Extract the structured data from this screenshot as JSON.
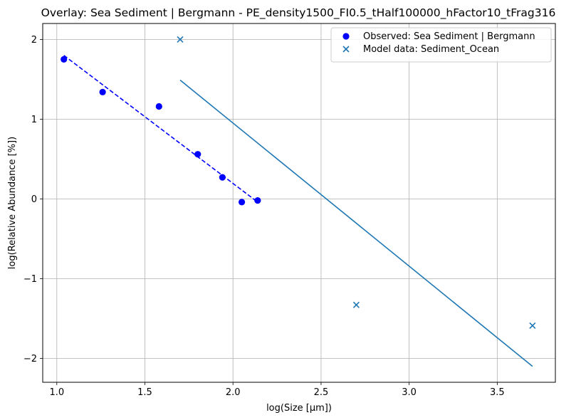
{
  "chart_data": {
    "type": "scatter",
    "title": "Overlay: Sea Sediment | Bergmann - PE_density1500_FI0.5_tHalf100000_hFactor10_tFrag316",
    "xlabel": "log(Size [μm])",
    "ylabel": "log(Relative Abundance [%])",
    "xlim": [
      0.92,
      3.83
    ],
    "ylim": [
      -2.3,
      2.2
    ],
    "xticks": [
      1.0,
      1.5,
      2.0,
      2.5,
      3.0,
      3.5
    ],
    "xtick_labels": [
      "1.0",
      "1.5",
      "2.0",
      "2.5",
      "3.0",
      "3.5"
    ],
    "yticks": [
      -2,
      -1,
      0,
      1,
      2
    ],
    "ytick_labels": [
      "−2",
      "−1",
      "0",
      "1",
      "2"
    ],
    "grid": true,
    "legend_position": "top-right",
    "series": [
      {
        "name": "Observed: Sea Sediment | Bergmann",
        "kind": "scatter",
        "marker": "circle",
        "color": "#0000ff",
        "x": [
          1.04,
          1.26,
          1.58,
          1.8,
          1.94,
          2.05,
          2.14
        ],
        "y": [
          1.75,
          1.34,
          1.16,
          0.56,
          0.27,
          -0.04,
          -0.02
        ]
      },
      {
        "name": "Model data: Sediment_Ocean",
        "kind": "scatter",
        "marker": "x",
        "color": "#1f77b4",
        "x": [
          1.7,
          2.7,
          3.7
        ],
        "y": [
          2.0,
          -1.33,
          -1.59
        ]
      }
    ],
    "lines": [
      {
        "style": "dashed",
        "color": "#0000ff",
        "x": [
          1.04,
          2.14
        ],
        "y": [
          1.8,
          -0.04
        ]
      },
      {
        "style": "solid",
        "color": "#1f77b4",
        "x": [
          1.7,
          3.7
        ],
        "y": [
          1.49,
          -2.1
        ]
      }
    ]
  }
}
